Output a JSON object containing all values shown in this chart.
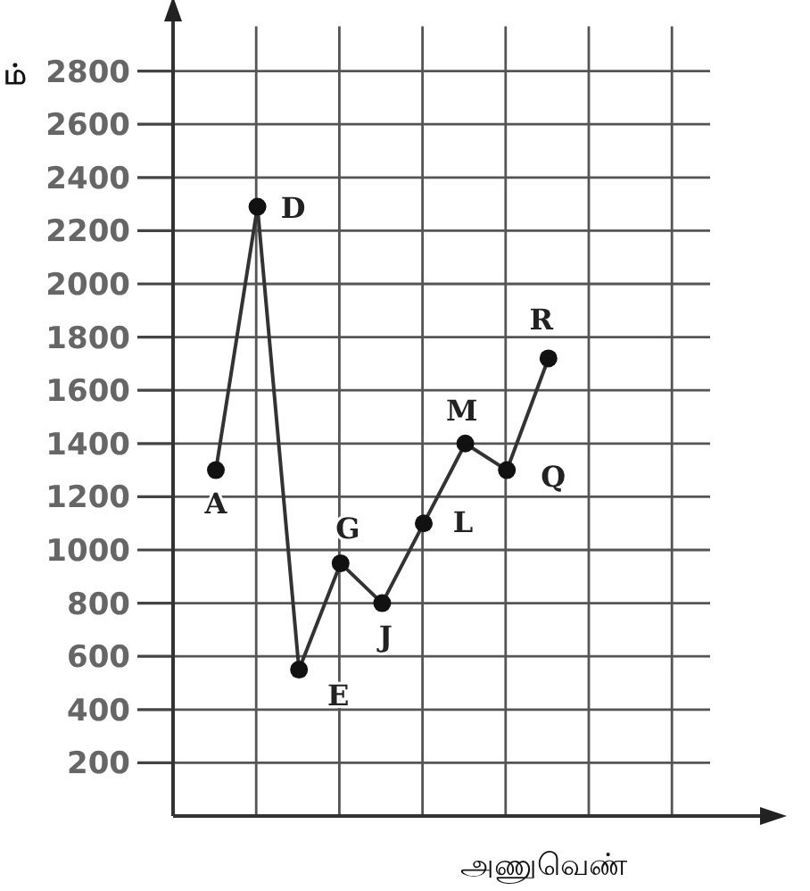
{
  "chart_data": {
    "type": "line",
    "ylabel": "ம்",
    "xlabel": "அணுவெண்",
    "categories": [
      null,
      null,
      null,
      null,
      null,
      null,
      null,
      null,
      null
    ],
    "annotations": [
      "A",
      "D",
      "E",
      "G",
      "J",
      "L",
      "M",
      "Q",
      "R"
    ],
    "series": [
      {
        "color": "#333333",
        "values": [
          1300,
          2290,
          550,
          950,
          800,
          1100,
          1400,
          1300,
          1720
        ]
      }
    ],
    "ylim": [
      0,
      3000
    ],
    "yticks": [
      200,
      400,
      600,
      800,
      1000,
      1200,
      1400,
      1600,
      1800,
      2000,
      2200,
      2400,
      2600,
      2800
    ],
    "grid": true,
    "marker": "circle",
    "line_style": "solid"
  }
}
